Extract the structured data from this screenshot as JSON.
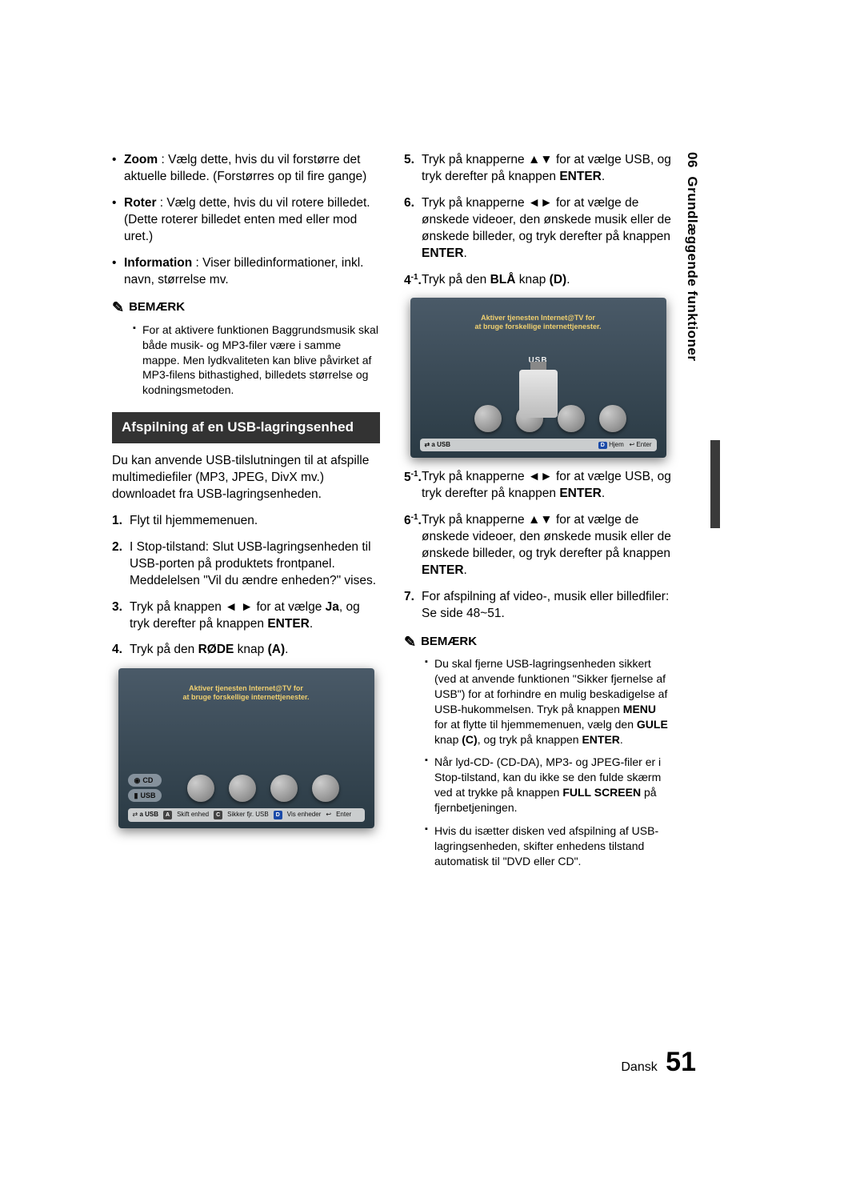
{
  "side": {
    "chapter": "06",
    "title": "Grundlæggende funktioner"
  },
  "left": {
    "defs": [
      {
        "term": "Zoom",
        "text": " : Vælg dette, hvis du vil forstørre det aktuelle billede. (Forstørres op til fire gange)"
      },
      {
        "term": "Roter",
        "text": " : Vælg dette, hvis du vil rotere billedet. (Dette roterer billedet enten med eller mod uret.)"
      },
      {
        "term": "Information",
        "text": " : Viser billedinformationer, inkl. navn, størrelse mv."
      }
    ],
    "bemark_label": "BEMÆRK",
    "note1": "For at aktivere funktionen Baggrundsmusik skal både musik- og MP3-filer være i samme mappe. Men lydkvaliteten kan blive påvirket af MP3-filens bithastighed, billedets størrelse og kodningsmetoden.",
    "section_title": "Afspilning af en USB-lagringsenhed",
    "intro": "Du kan anvende USB-tilslutningen til at afspille multimediefiler (MP3, JPEG, DivX mv.) downloadet fra USB-lagringsenheden.",
    "steps": [
      {
        "n": "1.",
        "text": "Flyt til hjemmemenuen."
      },
      {
        "n": "2.",
        "text": "I Stop-tilstand: Slut USB-lagringsenheden til USB-porten på produktets frontpanel. Meddelelsen \"Vil du ændre enheden?\" vises."
      },
      {
        "n": "3.",
        "html": "Tryk på knappen ◄ ► for at vælge <b>Ja</b>, og tryk derefter på knappen <b>ENTER</b>."
      },
      {
        "n": "4.",
        "html": "Tryk på den <b>RØDE</b> knap <b>(A)</b>."
      }
    ],
    "shot1": {
      "banner1": "Aktiver tjenesten Internet@TV for",
      "banner2": "at bruge forskellige internettjenester.",
      "chip1": "CD",
      "chip2": "USB",
      "footer": {
        "a": "a USB",
        "b": "Skift enhed",
        "c": "Sikker fjr. USB",
        "d": "Vis enheder",
        "e": "Enter",
        "tagA": "A",
        "tagC": "C",
        "tagD": "D",
        "ret": "↩"
      }
    }
  },
  "right": {
    "steps_top": [
      {
        "n": "5.",
        "html": "Tryk på knapperne ▲▼ for at vælge USB, og tryk derefter på knappen <b>ENTER</b>."
      },
      {
        "n": "6.",
        "html": "Tryk på knapperne ◄► for at vælge de ønskede videoer, den ønskede musik eller de ønskede billeder, og tryk derefter på knappen <b>ENTER</b>."
      },
      {
        "n": "4",
        "sup": "-1",
        "dot": ".",
        "html": "Tryk på den <b>BLÅ</b> knap <b>(D)</b>."
      }
    ],
    "shot2": {
      "banner1": "Aktiver tjenesten Internet@TV for",
      "banner2": "at bruge forskellige internettjenester.",
      "usb_label": "USB",
      "footer": {
        "left": "⇄ a USB",
        "d": "Hjem",
        "e": "Enter",
        "tagD": "D",
        "ret": "↩"
      }
    },
    "steps_mid": [
      {
        "n": "5",
        "sup": "-1",
        "dot": ".",
        "html": "Tryk på knapperne ◄► for at vælge USB, og tryk derefter på knappen <b>ENTER</b>."
      },
      {
        "n": "6",
        "sup": "-1",
        "dot": ".",
        "html": "Tryk på knapperne ▲▼ for at vælge de ønskede videoer, den ønskede musik eller de ønskede billeder, og tryk derefter på knappen <b>ENTER</b>."
      },
      {
        "n": "7.",
        "html": "For afspilning af video-, musik eller billedfiler: Se side 48~51."
      }
    ],
    "bemark_label": "BEMÆRK",
    "notes": [
      "Du skal fjerne USB-lagringsenheden sikkert (ved at anvende funktionen \"Sikker fjernelse af USB\") for at forhindre en mulig beskadigelse af USB-hukommelsen. Tryk på knappen <b>MENU</b> for at flytte til hjemmemenuen, vælg den <b>GULE</b> knap <b>(C)</b>, og tryk på knappen <b>ENTER</b>.",
      "Når lyd-CD- (CD-DA), MP3- og JPEG-filer er i Stop-tilstand, kan du ikke se den fulde skærm ved at trykke på knappen <b>FULL SCREEN</b> på fjernbetjeningen.",
      "Hvis du isætter disken ved afspilning af USB-lagringsenheden, skifter enhedens tilstand automatisk til \"DVD eller CD\"."
    ]
  },
  "footer": {
    "lang": "Dansk",
    "page": "51"
  }
}
